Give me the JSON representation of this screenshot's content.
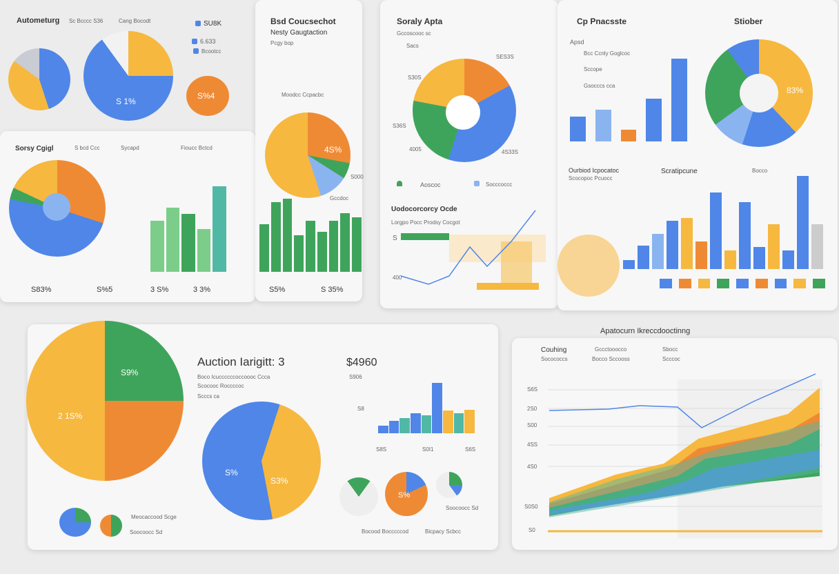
{
  "header": {
    "title": "Autometurg",
    "subtitle": "Sc Bcccc S36",
    "note": "Cang Bocodt"
  },
  "top_legend": [
    "SU8K",
    "6.633",
    "Bcootcc"
  ],
  "top_pie_label": "S 1%",
  "top_badge": "S%4",
  "sales_panel": {
    "title": "Sorsy Cgigl",
    "legend": [
      "S bcd Ccc",
      "Sycapd",
      "Fioucc Bctcd"
    ],
    "footer": [
      "S83%",
      "S%5",
      "3 S%",
      "3 3%"
    ]
  },
  "budget_panel": {
    "title": "Bsd Coucsechot",
    "subtitle": "Nesty Gaugtaction",
    "note": "Pcgy bop",
    "legend": "Moodcc Ccpacbc",
    "pie_label": "4S%",
    "side_label": "S000",
    "bottom_label": "Gccdoc",
    "footer": [
      "S5%",
      "S 35%"
    ]
  },
  "survey_panel": {
    "title": "Soraly Apta",
    "subtitle": "Gccoscooc sc",
    "note": "Sacs",
    "labels": [
      "SES3S",
      "S30S",
      "S36S",
      "4005",
      "4S33S"
    ],
    "legend": [
      "Aoscoc",
      "Socccoccc"
    ],
    "line_title": "Uodocorcorcy Ocde",
    "line_subtitle": "Lorgpo Pocc Prodsy Cocgot",
    "axis": [
      "S",
      "400"
    ]
  },
  "report_panel": {
    "title": "Cp Pnacsste",
    "badge": "Stiober",
    "subtitle": "Apsd",
    "legend": [
      "Bcc Ccnly Goglcoc",
      "Sccope",
      "Gsocccs cca"
    ],
    "donut_label": "83%",
    "lower_title": "Ourbiod Icpocatoc",
    "lower_subtitle": "Scocopoc Pcuocc",
    "lower_title2": "Scratipcune",
    "legend2": "Bocco"
  },
  "auction_panel": {
    "title": "Auction Iarigitt: 3",
    "amount": "$4960",
    "desc": [
      "Boco Icuccccccoccoooc Ccca",
      "Scocooc Roccccoc",
      "Scccs ca"
    ],
    "pie_labels": [
      "S9%",
      "2 1S%",
      "S%",
      "S3%",
      "S%"
    ],
    "bar_axis": [
      "S906",
      "S8",
      "S8S",
      "S0I1",
      "S6S"
    ],
    "legend": [
      "Meocaccood Scge",
      "Soocoocc Sd"
    ],
    "bottom_legend": [
      "Bocood Bocccccod",
      "Bicpacy Scbcc"
    ]
  },
  "trend_panel": {
    "title": "Apatocurn Ikreccdooctinng",
    "legend": [
      "Couhing",
      "Gccctooocco",
      "Sbocc"
    ],
    "sublegend": [
      "Socococcs",
      "Bocco Sccooss",
      "Scccoc"
    ],
    "yaxis": [
      "S6S",
      "2S0",
      "S00",
      "4SS",
      "4S0",
      "S0S0",
      "S0"
    ]
  }
}
